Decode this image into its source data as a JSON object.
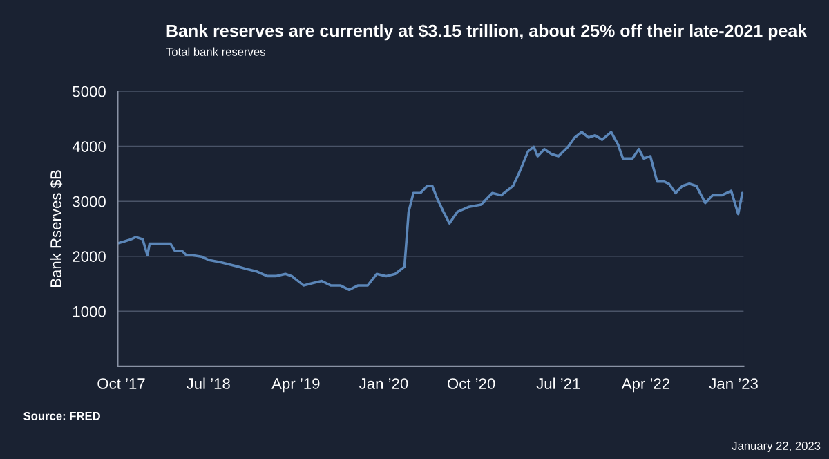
{
  "chart_data": {
    "type": "line",
    "title": "Bank reserves are currently at $3.15 trillion, about 25% off their late-2021 peak",
    "subtitle": "Total bank reserves",
    "ylabel": "Bank Rserves $B",
    "annotations": [
      "Source: FRED",
      "January 22, 2023"
    ],
    "x": [
      "2017-09-22",
      "2017-10-11",
      "2017-11-01",
      "2017-11-16",
      "2017-12-07",
      "2017-12-22",
      "2017-12-29",
      "2018-02-03",
      "2018-03-04",
      "2018-03-18",
      "2018-04-09",
      "2018-04-23",
      "2018-05-12",
      "2018-06-12",
      "2018-07-03",
      "2018-08-09",
      "2018-09-06",
      "2018-10-04",
      "2018-11-03",
      "2018-12-01",
      "2019-01-01",
      "2019-01-28",
      "2019-02-27",
      "2019-03-19",
      "2019-04-25",
      "2019-05-22",
      "2019-06-21",
      "2019-07-19",
      "2019-08-18",
      "2019-09-15",
      "2019-10-13",
      "2019-11-12",
      "2019-12-10",
      "2020-01-09",
      "2020-02-06",
      "2020-03-06",
      "2020-03-19",
      "2020-04-03",
      "2020-04-25",
      "2020-05-16",
      "2020-06-01",
      "2020-06-15",
      "2020-07-06",
      "2020-07-25",
      "2020-08-19",
      "2020-09-24",
      "2020-11-01",
      "2020-12-06",
      "2021-01-03",
      "2021-02-09",
      "2021-03-01",
      "2021-03-28",
      "2021-04-15",
      "2021-04-27",
      "2021-05-18",
      "2021-06-09",
      "2021-07-01",
      "2021-07-31",
      "2021-08-21",
      "2021-09-12",
      "2021-10-03",
      "2021-10-24",
      "2021-11-15",
      "2021-12-13",
      "2022-01-04",
      "2022-01-19",
      "2022-02-18",
      "2022-03-10",
      "2022-03-25",
      "2022-04-15",
      "2022-05-06",
      "2022-05-28",
      "2022-06-12",
      "2022-07-03",
      "2022-07-24",
      "2022-08-15",
      "2022-09-06",
      "2022-10-04",
      "2022-10-27",
      "2022-11-25",
      "2022-12-24",
      "2023-01-15",
      "2023-01-28"
    ],
    "series": [
      {
        "color": "#5b86b8",
        "values": [
          2240,
          2270,
          2310,
          2350,
          2310,
          2020,
          2230,
          2230,
          2230,
          2100,
          2100,
          2020,
          2020,
          1990,
          1930,
          1890,
          1850,
          1810,
          1760,
          1720,
          1640,
          1640,
          1680,
          1640,
          1470,
          1510,
          1550,
          1470,
          1470,
          1390,
          1470,
          1470,
          1680,
          1640,
          1680,
          1810,
          2810,
          3150,
          3150,
          3280,
          3280,
          3070,
          2810,
          2600,
          2810,
          2900,
          2940,
          3150,
          3110,
          3280,
          3530,
          3910,
          3990,
          3820,
          3950,
          3860,
          3820,
          3990,
          4160,
          4260,
          4160,
          4200,
          4120,
          4260,
          4030,
          3780,
          3780,
          3950,
          3780,
          3820,
          3360,
          3360,
          3320,
          3150,
          3280,
          3320,
          3280,
          2970,
          3110,
          3110,
          3190,
          2770,
          3150
        ]
      }
    ],
    "xlim": [
      "2017-09-20",
      "2023-02-01"
    ],
    "xticks": [
      {
        "value": "2017-10-01",
        "label": "Oct ’17"
      },
      {
        "value": "2018-07-01",
        "label": "Jul ’18"
      },
      {
        "value": "2019-04-01",
        "label": "Apr ’19"
      },
      {
        "value": "2020-01-01",
        "label": "Jan ’20"
      },
      {
        "value": "2020-10-01",
        "label": "Oct ’20"
      },
      {
        "value": "2021-07-01",
        "label": "Jul ’21"
      },
      {
        "value": "2022-04-01",
        "label": "Apr ’22"
      },
      {
        "value": "2023-01-01",
        "label": "Jan ’23"
      }
    ],
    "ylim": [
      0,
      5000
    ],
    "yticks": [
      1000,
      2000,
      3000,
      4000,
      5000
    ],
    "grid": "y",
    "legend": false,
    "marker": "none",
    "line_style": "solid"
  }
}
